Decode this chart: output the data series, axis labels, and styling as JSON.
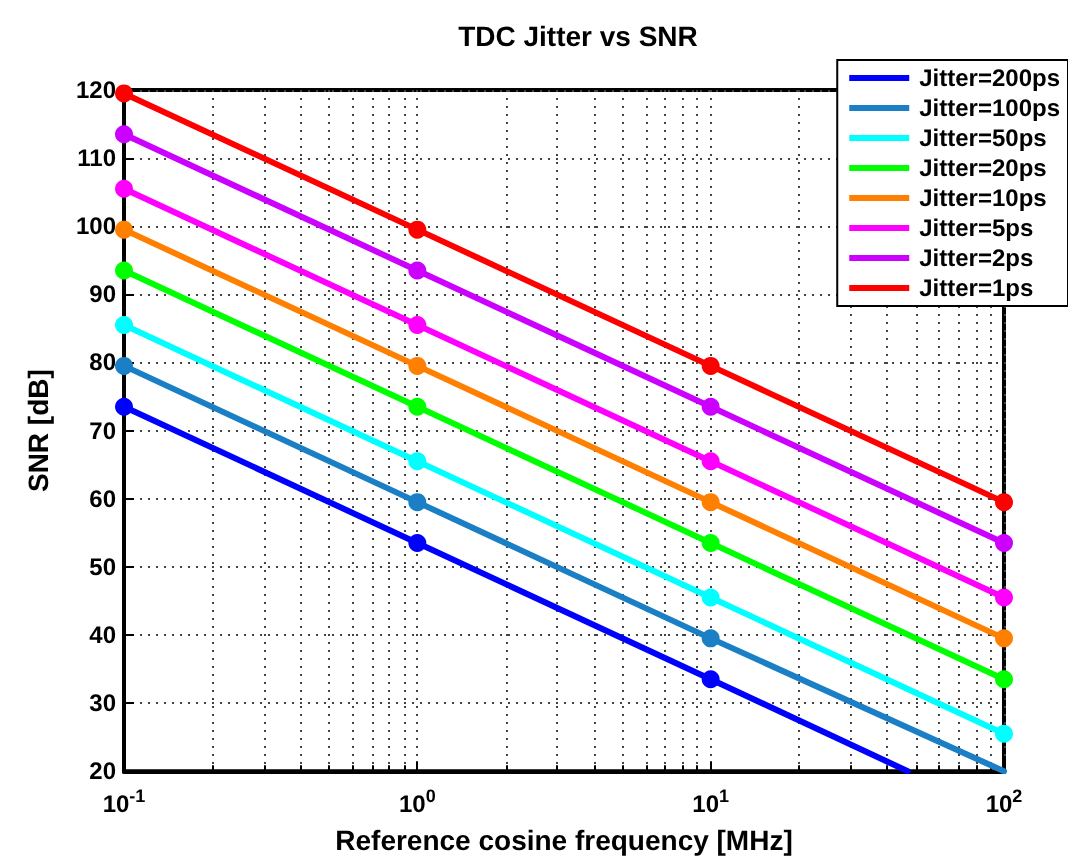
{
  "chart_data": {
    "type": "line",
    "title": "TDC Jitter vs SNR",
    "xlabel": "Reference cosine frequency [MHz]",
    "ylabel": "SNR [dB]",
    "log": "x",
    "xlim": [
      0.1,
      100
    ],
    "xticks": [
      {
        "value": 0.1,
        "label": "10$^{-1}$"
      },
      {
        "value": 1,
        "label": "10$^{0}$"
      },
      {
        "value": 10,
        "label": "10$^{1}$"
      },
      {
        "value": 100,
        "label": "10$^{2}$"
      }
    ],
    "ylim": [
      20,
      120
    ],
    "yticks": [
      20,
      30,
      40,
      50,
      60,
      70,
      80,
      90,
      100,
      110,
      120
    ],
    "grid": true,
    "legend": "top right",
    "marker": "circle",
    "line_style": "solid",
    "series": [
      {
        "name": "Jitter=200ps",
        "color": "#0000ff",
        "x": [
          0.1,
          1,
          10,
          47
        ],
        "values": [
          73.5,
          53.5,
          33.5,
          20
        ]
      },
      {
        "name": "Jitter=100ps",
        "color": "#1a7fc4",
        "x": [
          0.1,
          1,
          10,
          100
        ],
        "values": [
          79.5,
          59.5,
          39.5,
          20
        ]
      },
      {
        "name": "Jitter=50ps",
        "color": "#00ffff",
        "x": [
          0.1,
          1,
          10,
          100
        ],
        "values": [
          85.5,
          65.5,
          45.5,
          25.5
        ]
      },
      {
        "name": "Jitter=20ps",
        "color": "#00ff00",
        "x": [
          0.1,
          1,
          10,
          100
        ],
        "values": [
          93.5,
          73.5,
          53.5,
          33.5
        ]
      },
      {
        "name": "Jitter=10ps",
        "color": "#ff7f00",
        "x": [
          0.1,
          1,
          10,
          100
        ],
        "values": [
          99.5,
          79.5,
          59.5,
          39.5
        ]
      },
      {
        "name": "Jitter=5ps",
        "color": "#ff00ff",
        "x": [
          0.1,
          1,
          10,
          100
        ],
        "values": [
          105.5,
          85.5,
          65.5,
          45.5
        ]
      },
      {
        "name": "Jitter=2ps",
        "color": "#cc00ff",
        "x": [
          0.1,
          1,
          10,
          100
        ],
        "values": [
          113.5,
          93.5,
          73.5,
          53.5
        ]
      },
      {
        "name": "Jitter=1ps",
        "color": "#ff0000",
        "x": [
          0.1,
          1,
          10,
          100
        ],
        "values": [
          119.5,
          99.5,
          79.5,
          59.5
        ]
      }
    ]
  }
}
